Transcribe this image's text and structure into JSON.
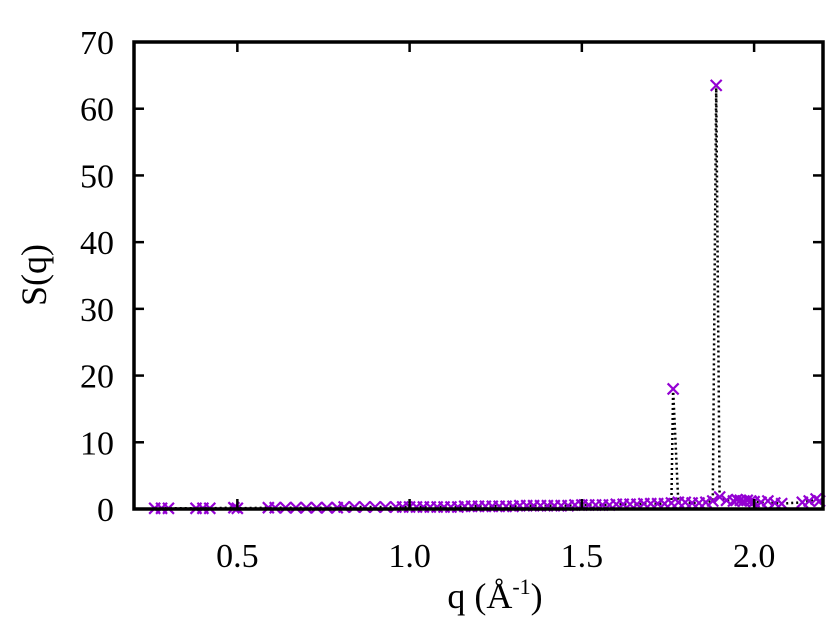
{
  "chart_data": {
    "type": "scatter",
    "title": "",
    "xlabel": {
      "main": "q (Å",
      "sup": "-1",
      "close": ")"
    },
    "ylabel": "S(q)",
    "xlim": [
      0.2,
      2.2
    ],
    "ylim": [
      0,
      70
    ],
    "xticks": [
      0.5,
      1.0,
      1.5,
      2.0
    ],
    "xtick_labels": [
      "0.5",
      "1.0",
      "1.5",
      "2.0"
    ],
    "yticks": [
      0,
      10,
      20,
      30,
      40,
      50,
      60,
      70
    ],
    "ytick_labels": [
      "0",
      "10",
      "20",
      "30",
      "40",
      "50",
      "60",
      "70"
    ],
    "grid": false,
    "marker": "x",
    "connector_line": "dotted",
    "colors": {
      "marker": "#9400D3",
      "connector": "#000000",
      "frame": "#000000"
    },
    "series": [
      {
        "x": [
          0.26,
          0.28,
          0.3,
          0.38,
          0.4,
          0.42,
          0.49,
          0.5,
          0.59,
          0.61,
          0.64,
          0.67,
          0.7,
          0.73,
          0.76,
          0.79,
          0.81,
          0.84,
          0.87,
          0.9,
          0.93,
          0.96,
          0.98,
          1.0,
          1.02,
          1.04,
          1.06,
          1.08,
          1.1,
          1.12,
          1.14,
          1.16,
          1.18,
          1.2,
          1.22,
          1.24,
          1.26,
          1.28,
          1.3,
          1.32,
          1.34,
          1.36,
          1.38,
          1.4,
          1.42,
          1.44,
          1.46,
          1.48,
          1.5,
          1.52,
          1.54,
          1.56,
          1.58,
          1.6,
          1.62,
          1.64,
          1.66,
          1.68,
          1.7,
          1.72,
          1.74,
          1.76,
          1.765,
          1.78,
          1.8,
          1.82,
          1.84,
          1.86,
          1.88,
          1.89,
          1.9,
          1.92,
          1.94,
          1.95,
          1.96,
          1.97,
          1.98,
          1.99,
          2.0,
          2.02,
          2.04,
          2.06,
          2.08,
          2.14,
          2.16,
          2.18,
          2.19
        ],
        "y": [
          0.1,
          0.1,
          0.1,
          0.1,
          0.1,
          0.1,
          0.2,
          0.1,
          0.2,
          0.2,
          0.2,
          0.2,
          0.2,
          0.2,
          0.2,
          0.2,
          0.3,
          0.3,
          0.3,
          0.3,
          0.3,
          0.3,
          0.3,
          0.3,
          0.3,
          0.3,
          0.3,
          0.3,
          0.3,
          0.3,
          0.3,
          0.4,
          0.4,
          0.4,
          0.4,
          0.4,
          0.4,
          0.4,
          0.4,
          0.5,
          0.5,
          0.5,
          0.5,
          0.5,
          0.5,
          0.5,
          0.5,
          0.6,
          0.6,
          0.6,
          0.6,
          0.6,
          0.6,
          0.7,
          0.7,
          0.7,
          0.7,
          0.8,
          0.8,
          0.8,
          0.8,
          0.9,
          18.0,
          1.0,
          1.0,
          0.9,
          0.9,
          1.0,
          1.2,
          63.5,
          1.8,
          1.3,
          1.2,
          1.4,
          1.3,
          1.2,
          1.3,
          1.2,
          1.1,
          1.0,
          1.2,
          0.9,
          0.8,
          1.0,
          1.2,
          1.5,
          1.2
        ]
      }
    ]
  }
}
